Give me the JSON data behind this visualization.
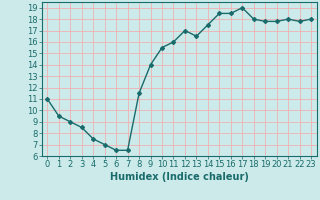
{
  "x": [
    0,
    1,
    2,
    3,
    4,
    5,
    6,
    7,
    8,
    9,
    10,
    11,
    12,
    13,
    14,
    15,
    16,
    17,
    18,
    19,
    20,
    21,
    22,
    23
  ],
  "y": [
    11,
    9.5,
    9,
    8.5,
    7.5,
    7,
    6.5,
    6.5,
    11.5,
    14,
    15.5,
    16,
    17,
    16.5,
    17.5,
    18.5,
    18.5,
    19,
    18,
    17.8,
    17.8,
    18,
    17.8,
    18
  ],
  "line_color": "#1a6b6b",
  "marker": "D",
  "marker_size": 2,
  "bg_color": "#cceaea",
  "grid_color": "#f0b0b0",
  "xlabel": "Humidex (Indice chaleur)",
  "xlim": [
    -0.5,
    23.5
  ],
  "ylim": [
    6,
    19.5
  ],
  "yticks": [
    6,
    7,
    8,
    9,
    10,
    11,
    12,
    13,
    14,
    15,
    16,
    17,
    18,
    19
  ],
  "xticks": [
    0,
    1,
    2,
    3,
    4,
    5,
    6,
    7,
    8,
    9,
    10,
    11,
    12,
    13,
    14,
    15,
    16,
    17,
    18,
    19,
    20,
    21,
    22,
    23
  ],
  "xlabel_fontsize": 7,
  "tick_fontsize": 6,
  "linewidth": 1.0
}
